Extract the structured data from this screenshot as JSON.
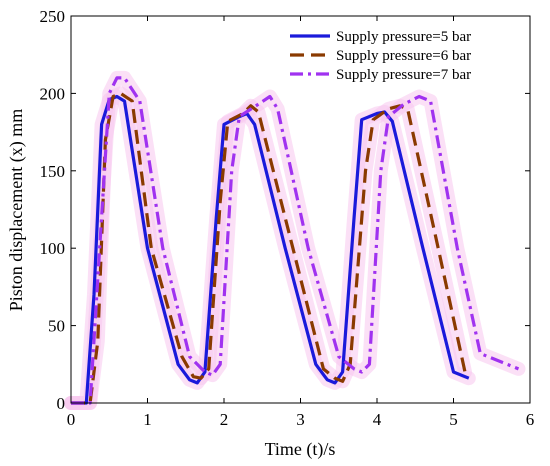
{
  "chart_data": {
    "type": "line",
    "xlabel": "Time (t)/s",
    "ylabel": "Piston displacement (x) mm",
    "xlim": [
      0,
      6
    ],
    "ylim": [
      0,
      250
    ],
    "xticks": [
      0,
      1,
      2,
      3,
      4,
      5,
      6
    ],
    "yticks": [
      0,
      50,
      100,
      150,
      200,
      250
    ],
    "grid": false,
    "legend_position": "top-right",
    "series": [
      {
        "name": "Supply pressure=5 bar",
        "color": "#1a1adb",
        "dash": "solid",
        "x": [
          0,
          0.2,
          0.3,
          0.4,
          0.5,
          0.6,
          0.7,
          1.0,
          1.4,
          1.55,
          1.65,
          1.75,
          1.9,
          2.0,
          2.2,
          2.3,
          2.4,
          2.8,
          3.2,
          3.35,
          3.45,
          3.55,
          3.7,
          3.8,
          4.0,
          4.1,
          4.2,
          4.6,
          5.0,
          5.2
        ],
        "y": [
          0,
          0,
          70,
          180,
          196,
          198,
          195,
          100,
          25,
          15,
          13,
          20,
          120,
          180,
          185,
          187,
          180,
          100,
          25,
          15,
          13,
          20,
          120,
          183,
          187,
          188,
          182,
          100,
          20,
          16
        ]
      },
      {
        "name": "Supply pressure=6 bar",
        "color": "#8a3a00",
        "dash": "long",
        "x": [
          0,
          0.25,
          0.35,
          0.45,
          0.55,
          0.65,
          0.8,
          1.05,
          1.45,
          1.6,
          1.7,
          1.8,
          1.95,
          2.05,
          2.25,
          2.35,
          2.45,
          2.9,
          3.3,
          3.45,
          3.55,
          3.65,
          3.85,
          3.95,
          4.15,
          4.3,
          4.4,
          4.8,
          5.15
        ],
        "y": [
          0,
          0,
          40,
          170,
          198,
          200,
          195,
          100,
          30,
          17,
          16,
          22,
          130,
          182,
          187,
          192,
          188,
          100,
          22,
          16,
          14,
          25,
          150,
          183,
          190,
          192,
          190,
          100,
          20
        ]
      },
      {
        "name": "Supply pressure=7 bar",
        "color": "#a032f0",
        "dash": "dashdot",
        "x": [
          0,
          0.25,
          0.4,
          0.5,
          0.6,
          0.7,
          0.9,
          1.2,
          1.55,
          1.75,
          1.85,
          1.95,
          2.1,
          2.2,
          2.45,
          2.6,
          2.7,
          3.1,
          3.5,
          3.7,
          3.8,
          3.9,
          4.05,
          4.15,
          4.35,
          4.55,
          4.7,
          5.05,
          5.35,
          5.85
        ],
        "y": [
          0,
          0,
          120,
          200,
          210,
          210,
          195,
          100,
          30,
          20,
          18,
          25,
          150,
          185,
          193,
          198,
          190,
          100,
          30,
          22,
          20,
          25,
          150,
          185,
          193,
          198,
          195,
          100,
          32,
          22
        ]
      }
    ]
  }
}
